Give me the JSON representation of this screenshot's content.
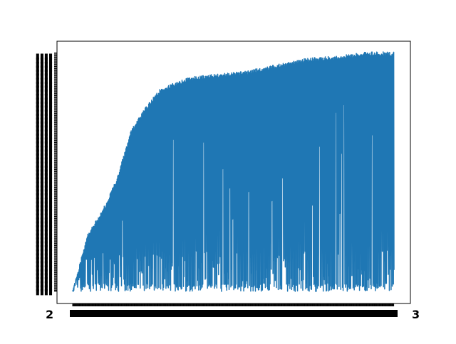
{
  "figure": {
    "background": "#ffffff"
  },
  "chart_data": {
    "type": "line",
    "title": "",
    "xlabel": "",
    "ylabel": "",
    "grid": false,
    "legend": "none",
    "line_color": "#1f77b4",
    "x_axis": {
      "kind": "categorical-dates",
      "n_points": 1100,
      "tick_labels_illegible": true,
      "first_tick_label_prefix": "2",
      "last_tick_label_suffix": "3"
    },
    "y_axis": {
      "kind": "categorical",
      "n_levels": 230,
      "tick_labels_illegible": true
    },
    "envelope": {
      "description_points": [
        {
          "x_index": 0,
          "y_level": 0
        },
        {
          "x_index": 50,
          "y_level": 55
        },
        {
          "x_index": 100,
          "y_level": 77
        },
        {
          "x_index": 150,
          "y_level": 108
        },
        {
          "x_index": 200,
          "y_level": 155
        },
        {
          "x_index": 250,
          "y_level": 177
        },
        {
          "x_index": 300,
          "y_level": 195
        },
        {
          "x_index": 400,
          "y_level": 206
        },
        {
          "x_index": 500,
          "y_level": 209
        },
        {
          "x_index": 600,
          "y_level": 212
        },
        {
          "x_index": 700,
          "y_level": 218
        },
        {
          "x_index": 800,
          "y_level": 224
        },
        {
          "x_index": 900,
          "y_level": 226
        },
        {
          "x_index": 1000,
          "y_level": 230
        },
        {
          "x_index": 1099,
          "y_level": 230
        }
      ]
    },
    "note_values": "Values are estimated from the plotted shape; the series oscillates densely between ~0–20 and the rising upper envelope."
  }
}
